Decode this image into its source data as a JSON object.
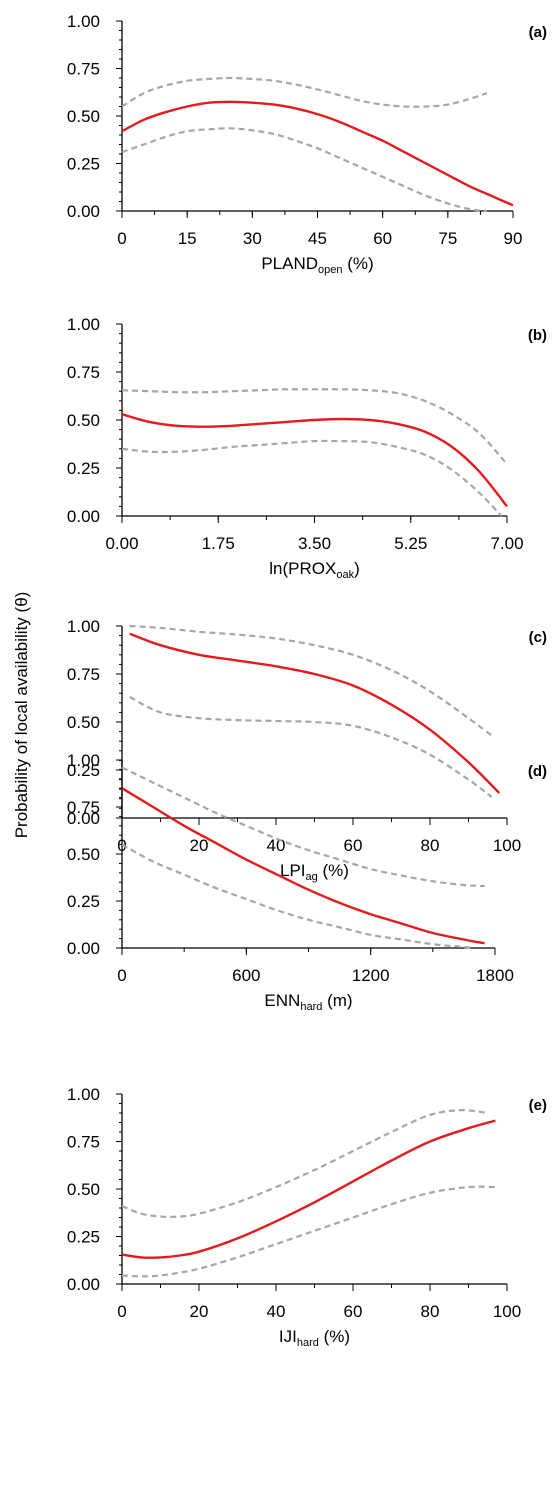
{
  "figure": {
    "ylabel": "Probability of local availability (θ)"
  },
  "colors": {
    "prediction": "#e41a1c",
    "confidence": "#a6a6a6",
    "axis": "#000000"
  },
  "chart_data": [
    {
      "type": "line",
      "panel": "(a)",
      "xlabel_main": "PLAND",
      "xlabel_sub": "open",
      "xlabel_tail": " (%)",
      "xlim": [
        0,
        90
      ],
      "ylim": [
        0,
        1
      ],
      "xticks": [
        0,
        15,
        30,
        45,
        60,
        75,
        90
      ],
      "xtick_labels": [
        "0",
        "15",
        "30",
        "45",
        "60",
        "75",
        "90"
      ],
      "yticks": [
        0,
        0.25,
        0.5,
        0.75,
        1
      ],
      "ytick_labels": [
        "0.00",
        "0.25",
        "0.50",
        "0.75",
        "1.00"
      ],
      "series": [
        {
          "role": "estimate",
          "x": [
            0,
            5,
            10,
            15,
            20,
            25,
            30,
            35,
            40,
            45,
            50,
            55,
            60,
            65,
            70,
            75,
            80,
            85,
            90
          ],
          "y": [
            0.42,
            0.48,
            0.52,
            0.55,
            0.57,
            0.575,
            0.57,
            0.56,
            0.54,
            0.51,
            0.47,
            0.42,
            0.37,
            0.31,
            0.25,
            0.19,
            0.13,
            0.08,
            0.03
          ]
        },
        {
          "role": "upper",
          "x": [
            0,
            5,
            10,
            15,
            20,
            25,
            30,
            35,
            40,
            45,
            50,
            55,
            60,
            65,
            70,
            75,
            80,
            84
          ],
          "y": [
            0.55,
            0.62,
            0.66,
            0.685,
            0.695,
            0.7,
            0.695,
            0.685,
            0.665,
            0.64,
            0.61,
            0.58,
            0.56,
            0.55,
            0.55,
            0.56,
            0.59,
            0.62
          ]
        },
        {
          "role": "lower",
          "x": [
            0,
            5,
            10,
            15,
            20,
            25,
            30,
            35,
            40,
            45,
            50,
            55,
            60,
            65,
            70,
            75,
            80,
            84
          ],
          "y": [
            0.31,
            0.35,
            0.39,
            0.42,
            0.43,
            0.435,
            0.425,
            0.405,
            0.37,
            0.33,
            0.28,
            0.23,
            0.18,
            0.13,
            0.08,
            0.04,
            0.01,
            0.0
          ]
        }
      ]
    },
    {
      "type": "line",
      "panel": "(b)",
      "xlabel_main": "ln(PROX",
      "xlabel_sub": "oak",
      "xlabel_tail": ")",
      "xlim": [
        0,
        7
      ],
      "ylim": [
        0,
        1
      ],
      "xticks": [
        0,
        1.75,
        3.5,
        5.25,
        7
      ],
      "xtick_labels": [
        "0.00",
        "1.75",
        "3.50",
        "5.25",
        "7.00"
      ],
      "yticks": [
        0,
        0.25,
        0.5,
        0.75,
        1
      ],
      "ytick_labels": [
        "0.00",
        "0.25",
        "0.50",
        "0.75",
        "1.00"
      ],
      "series": [
        {
          "role": "estimate",
          "x": [
            0,
            0.5,
            1,
            1.5,
            2,
            2.5,
            3,
            3.5,
            4,
            4.5,
            5,
            5.5,
            6,
            6.5,
            7
          ],
          "y": [
            0.53,
            0.49,
            0.47,
            0.465,
            0.47,
            0.48,
            0.49,
            0.5,
            0.505,
            0.5,
            0.48,
            0.44,
            0.36,
            0.23,
            0.05
          ]
        },
        {
          "role": "upper",
          "x": [
            0,
            0.5,
            1,
            1.5,
            2,
            2.5,
            3,
            3.5,
            4,
            4.5,
            5,
            5.5,
            6,
            6.5,
            7
          ],
          "y": [
            0.655,
            0.65,
            0.645,
            0.645,
            0.65,
            0.655,
            0.66,
            0.66,
            0.66,
            0.655,
            0.64,
            0.6,
            0.53,
            0.43,
            0.27
          ]
        },
        {
          "role": "lower",
          "x": [
            0,
            0.5,
            1,
            1.5,
            2,
            2.5,
            3,
            3.5,
            4,
            4.5,
            5,
            5.5,
            6,
            6.5,
            6.9
          ],
          "y": [
            0.35,
            0.335,
            0.335,
            0.345,
            0.36,
            0.37,
            0.38,
            0.39,
            0.39,
            0.385,
            0.36,
            0.32,
            0.24,
            0.12,
            0.0
          ]
        }
      ]
    },
    {
      "type": "line",
      "panel": "(c)",
      "xlabel_main": "LPI",
      "xlabel_sub": "ag",
      "xlabel_tail": " (%)",
      "xlim": [
        0,
        100
      ],
      "ylim": [
        0,
        1
      ],
      "xticks": [
        0,
        20,
        40,
        60,
        80,
        100
      ],
      "xtick_labels": [
        "0",
        "20",
        "40",
        "60",
        "80",
        "100"
      ],
      "yticks": [
        0,
        0.25,
        0.5,
        0.75,
        1
      ],
      "ytick_labels": [
        "0.00",
        "0.25",
        "0.50",
        "0.75",
        "1.00"
      ],
      "series": [
        {
          "role": "estimate",
          "x": [
            2,
            10,
            20,
            30,
            40,
            50,
            60,
            70,
            80,
            90,
            98
          ],
          "y": [
            0.96,
            0.9,
            0.85,
            0.82,
            0.79,
            0.75,
            0.69,
            0.59,
            0.46,
            0.29,
            0.13
          ]
        },
        {
          "role": "upper",
          "x": [
            2,
            10,
            20,
            30,
            40,
            50,
            60,
            70,
            80,
            90,
            96
          ],
          "y": [
            1.0,
            0.99,
            0.97,
            0.955,
            0.935,
            0.9,
            0.85,
            0.77,
            0.66,
            0.52,
            0.43
          ]
        },
        {
          "role": "lower",
          "x": [
            2,
            10,
            20,
            30,
            40,
            50,
            60,
            70,
            80,
            90,
            96
          ],
          "y": [
            0.63,
            0.55,
            0.52,
            0.51,
            0.505,
            0.5,
            0.48,
            0.42,
            0.33,
            0.2,
            0.11
          ]
        }
      ]
    },
    {
      "type": "line",
      "panel": "(d)",
      "xlabel_main": "ENN",
      "xlabel_sub": "hard",
      "xlabel_tail": " (m)",
      "xlim": [
        0,
        1800
      ],
      "ylim": [
        0,
        1
      ],
      "xticks": [
        0,
        600,
        1200,
        1800
      ],
      "xtick_labels": [
        "0",
        "600",
        "1200",
        "1800"
      ],
      "yticks": [
        0,
        0.25,
        0.5,
        0.75,
        1
      ],
      "ytick_labels": [
        "0.00",
        "0.25",
        "0.50",
        "0.75",
        "1.00"
      ],
      "series": [
        {
          "role": "estimate",
          "x": [
            0,
            150,
            300,
            450,
            600,
            750,
            900,
            1050,
            1200,
            1350,
            1500,
            1650,
            1750
          ],
          "y": [
            0.85,
            0.75,
            0.65,
            0.56,
            0.47,
            0.39,
            0.31,
            0.24,
            0.18,
            0.13,
            0.08,
            0.045,
            0.025
          ]
        },
        {
          "role": "upper",
          "x": [
            0,
            150,
            300,
            450,
            600,
            750,
            900,
            1050,
            1200,
            1350,
            1500,
            1650,
            1750
          ],
          "y": [
            0.96,
            0.88,
            0.8,
            0.72,
            0.65,
            0.58,
            0.52,
            0.47,
            0.42,
            0.385,
            0.355,
            0.335,
            0.33
          ]
        },
        {
          "role": "lower",
          "x": [
            0,
            150,
            300,
            450,
            600,
            750,
            900,
            1050,
            1200,
            1350,
            1500,
            1650,
            1700
          ],
          "y": [
            0.55,
            0.46,
            0.39,
            0.32,
            0.26,
            0.2,
            0.15,
            0.11,
            0.07,
            0.045,
            0.02,
            0.005,
            0.0
          ]
        }
      ]
    },
    {
      "type": "line",
      "panel": "(e)",
      "xlabel_main": "IJI",
      "xlabel_sub": "hard",
      "xlabel_tail": " (%)",
      "xlim": [
        0,
        100
      ],
      "ylim": [
        0,
        1
      ],
      "xticks": [
        0,
        20,
        40,
        60,
        80,
        100
      ],
      "xtick_labels": [
        "0",
        "20",
        "40",
        "60",
        "80",
        "100"
      ],
      "yticks": [
        0,
        0.25,
        0.5,
        0.75,
        1
      ],
      "ytick_labels": [
        "0.00",
        "0.25",
        "0.50",
        "0.75",
        "1.00"
      ],
      "series": [
        {
          "role": "estimate",
          "x": [
            0,
            5,
            10,
            15,
            20,
            30,
            40,
            50,
            60,
            70,
            80,
            90,
            97
          ],
          "y": [
            0.155,
            0.14,
            0.14,
            0.15,
            0.17,
            0.24,
            0.33,
            0.43,
            0.54,
            0.65,
            0.75,
            0.82,
            0.86
          ]
        },
        {
          "role": "upper",
          "x": [
            0,
            5,
            10,
            15,
            20,
            30,
            40,
            50,
            60,
            70,
            80,
            88,
            95
          ],
          "y": [
            0.41,
            0.37,
            0.355,
            0.355,
            0.37,
            0.43,
            0.51,
            0.6,
            0.7,
            0.8,
            0.89,
            0.915,
            0.9
          ]
        },
        {
          "role": "lower",
          "x": [
            0,
            5,
            10,
            15,
            20,
            30,
            40,
            50,
            60,
            70,
            80,
            90,
            97
          ],
          "y": [
            0.045,
            0.04,
            0.045,
            0.06,
            0.08,
            0.14,
            0.21,
            0.28,
            0.35,
            0.42,
            0.48,
            0.51,
            0.51
          ]
        }
      ]
    }
  ]
}
